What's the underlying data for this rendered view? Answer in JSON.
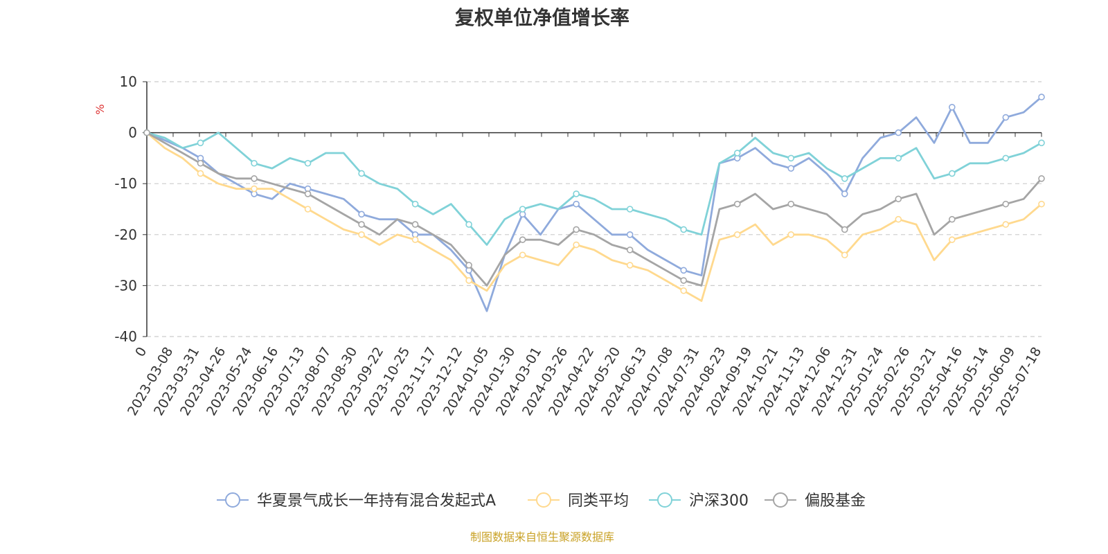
{
  "title": "复权单位净值增长率",
  "source": "制图数据来自恒生聚源数据库",
  "chart_data": {
    "type": "line",
    "title": "复权单位净值增长率",
    "ylabel": "%",
    "ylim": [
      -40,
      10
    ],
    "yticks": [
      10,
      0,
      -10,
      -20,
      -30,
      -40
    ],
    "x_origin_label": "0",
    "x_tick_labels": [
      "2023-03-08",
      "2023-03-31",
      "2023-04-26",
      "2023-05-24",
      "2023-06-16",
      "2023-07-13",
      "2023-08-07",
      "2023-08-30",
      "2023-09-22",
      "2023-10-25",
      "2023-11-17",
      "2023-12-12",
      "2024-01-05",
      "2024-01-30",
      "2024-03-01",
      "2024-03-26",
      "2024-04-22",
      "2024-05-20",
      "2024-06-13",
      "2024-07-08",
      "2024-07-31",
      "2024-08-23",
      "2024-09-19",
      "2024-10-21",
      "2024-11-13",
      "2024-12-06",
      "2024-12-31",
      "2025-01-24",
      "2025-02-26",
      "2025-03-21",
      "2025-04-16",
      "2025-05-14",
      "2025-06-09",
      "2025-07-18"
    ],
    "grid": true,
    "legend_position": "bottom",
    "series": [
      {
        "name": "华夏景气成长一年持有混合发起式A",
        "color": "#8faadc",
        "values": [
          0,
          -1.5,
          -3,
          -5,
          -8,
          -10,
          -12,
          -13,
          -10,
          -11,
          -12,
          -13,
          -16,
          -17,
          -17,
          -20,
          -20,
          -23,
          -27,
          -35,
          -24,
          -16,
          -20,
          -15,
          -14,
          -17,
          -20,
          -20,
          -23,
          -25,
          -27,
          -28,
          -6,
          -5,
          -3,
          -6,
          -7,
          -5,
          -8,
          -12,
          -5,
          -1,
          0,
          3,
          -2,
          5,
          -2,
          -2,
          3,
          4,
          7
        ]
      },
      {
        "name": "同类平均",
        "color": "#ffd98e",
        "values": [
          0,
          -3,
          -5,
          -8,
          -10,
          -11,
          -11,
          -11,
          -13,
          -15,
          -17,
          -19,
          -20,
          -22,
          -20,
          -21,
          -23,
          -25,
          -29,
          -31,
          -26,
          -24,
          -25,
          -26,
          -22,
          -23,
          -25,
          -26,
          -27,
          -29,
          -31,
          -33,
          -21,
          -20,
          -18,
          -22,
          -20,
          -20,
          -21,
          -24,
          -20,
          -19,
          -17,
          -18,
          -25,
          -21,
          -20,
          -19,
          -18,
          -17,
          -14
        ]
      },
      {
        "name": "沪深300",
        "color": "#80d2d8",
        "values": [
          0,
          -1,
          -3,
          -2,
          0,
          -3,
          -6,
          -7,
          -5,
          -6,
          -4,
          -4,
          -8,
          -10,
          -11,
          -14,
          -16,
          -14,
          -18,
          -22,
          -17,
          -15,
          -14,
          -15,
          -12,
          -13,
          -15,
          -15,
          -16,
          -17,
          -19,
          -20,
          -6,
          -4,
          -1,
          -4,
          -5,
          -4,
          -7,
          -9,
          -7,
          -5,
          -5,
          -3,
          -9,
          -8,
          -6,
          -6,
          -5,
          -4,
          -2
        ]
      },
      {
        "name": "偏股基金",
        "color": "#a5a5a5",
        "values": [
          0,
          -2,
          -4,
          -6,
          -8,
          -9,
          -9,
          -10,
          -11,
          -12,
          -14,
          -16,
          -18,
          -20,
          -17,
          -18,
          -20,
          -22,
          -26,
          -30,
          -24,
          -21,
          -21,
          -22,
          -19,
          -20,
          -22,
          -23,
          -25,
          -27,
          -29,
          -30,
          -15,
          -14,
          -12,
          -15,
          -14,
          -15,
          -16,
          -19,
          -16,
          -15,
          -13,
          -12,
          -20,
          -17,
          -16,
          -15,
          -14,
          -13,
          -9
        ]
      }
    ]
  }
}
